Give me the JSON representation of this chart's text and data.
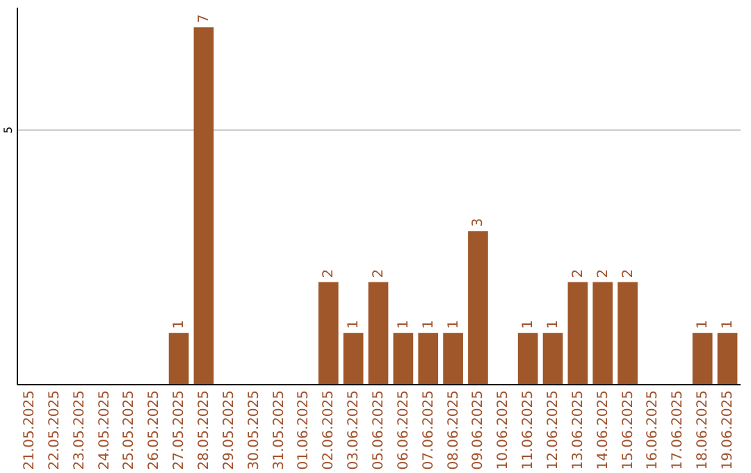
{
  "chart_data": {
    "type": "bar",
    "categories": [
      "21.05.2025",
      "22.05.2025",
      "23.05.2025",
      "24.05.2025",
      "25.05.2025",
      "26.05.2025",
      "27.05.2025",
      "28.05.2025",
      "29.05.2025",
      "30.05.2025",
      "31.05.2025",
      "01.06.2025",
      "02.06.2025",
      "03.06.2025",
      "05.06.2025",
      "06.06.2025",
      "07.06.2025",
      "08.06.2025",
      "09.06.2025",
      "10.06.2025",
      "11.06.2025",
      "12.06.2025",
      "13.06.2025",
      "14.06.2025",
      "15.06.2025",
      "16.06.2025",
      "17.06.2025",
      "18.06.2025",
      "19.06.2025"
    ],
    "values": [
      0,
      0,
      0,
      0,
      0,
      0,
      1,
      7,
      0,
      0,
      0,
      0,
      2,
      1,
      2,
      1,
      1,
      1,
      3,
      0,
      1,
      1,
      2,
      2,
      2,
      0,
      0,
      1,
      1
    ],
    "value_labels": [
      null,
      null,
      null,
      null,
      null,
      null,
      "1",
      "7",
      null,
      null,
      null,
      null,
      "2",
      "1",
      "2",
      "1",
      "1",
      "1",
      "3",
      null,
      "1",
      "1",
      "2",
      "2",
      "2",
      null,
      null,
      "1",
      "1"
    ],
    "color": "#a0572a",
    "ylim": [
      0,
      7.4
    ],
    "yticks": [
      5
    ],
    "grid": "y"
  }
}
